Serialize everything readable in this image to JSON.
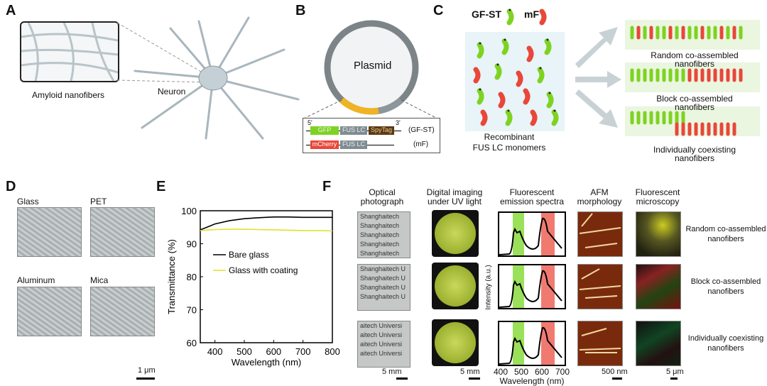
{
  "panels": {
    "A": {
      "label": "A",
      "inset_caption": "Amyloid nanofibers",
      "neuron_label": "Neuron"
    },
    "B": {
      "label": "B",
      "plasmid": "Plasmid",
      "five_prime": "5'",
      "three_prime": "3'",
      "construct1": {
        "parts": [
          "GFP",
          "FUS LC",
          "SpyTag"
        ],
        "name": "(GF-ST)"
      },
      "construct2": {
        "parts": [
          "mCherry",
          "FUS LC"
        ],
        "name": "(mF)"
      }
    },
    "C": {
      "label": "C",
      "legend_gfst": "GF-ST",
      "legend_mf": "mF",
      "monomers_caption_1": "Recombinant",
      "monomers_caption_2": "FUS LC monomers",
      "outcomes": [
        {
          "line1": "Random co-assembled",
          "line2": "nanofibers"
        },
        {
          "line1": "Block co-assembled",
          "line2": "nanofibers"
        },
        {
          "line1": "Individually coexisting",
          "line2": "nanofibers"
        }
      ]
    },
    "D": {
      "label": "D",
      "substrates": [
        "Glass",
        "PET",
        "Aluminum",
        "Mica"
      ],
      "scale_bar": "1 μm"
    },
    "E": {
      "label": "E"
    },
    "F": {
      "label": "F",
      "columns": [
        {
          "line1": "Optical",
          "line2": "photograph"
        },
        {
          "line1": "Digital imaging",
          "line2": "under UV light"
        },
        {
          "line1": "Fluorescent",
          "line2": "emission spectra"
        },
        {
          "line1": "AFM",
          "line2": "morphology"
        },
        {
          "line1": "Fluorescent",
          "line2": "microscopy"
        }
      ],
      "rows": [
        {
          "line1": "Random co-assembled",
          "line2": "nanofibers"
        },
        {
          "line1": "Block co-assembled",
          "line2": "nanofibers"
        },
        {
          "line1": "Individually coexisting",
          "line2": "nanofibers"
        }
      ],
      "optical_text": [
        [
          "Shanghaitech",
          "Shanghaitech",
          "Shanghaitech",
          "Shanghaitech",
          "Shanghaitech"
        ],
        [
          "Shanghaitech U",
          "Shanghaitech U",
          "Shanghaitech U",
          "Shanghaitech U"
        ],
        [
          "aitech Universi",
          "aitech Universi",
          "aitech Universi",
          "aitech Universi"
        ]
      ],
      "scale_optical": "5 mm",
      "scale_uv": "5 mm",
      "scale_afm": "500 nm",
      "scale_fm": "5 μm",
      "spectra_ylabel": "Intensity (a.u.)",
      "spectra_xlabel": "Wavelength (nm)",
      "spectra_ticks": [
        "400",
        "500",
        "600",
        "700"
      ],
      "spectra_green_band": [
        465,
        515
      ],
      "spectra_red_band": [
        590,
        650
      ]
    }
  },
  "colors": {
    "gfp": "#7ed321",
    "mcherry": "#e8473a",
    "fus": "#7f8c93",
    "spytag": "#5a3a16",
    "coating": "#e0e030",
    "green_band": "#9be05a",
    "red_band": "#f07a70"
  },
  "chart_data": {
    "type": "line",
    "title": "",
    "xlabel": "Wavelength (nm)",
    "ylabel": "Transmittance (%)",
    "xlim": [
      350,
      800
    ],
    "ylim": [
      60,
      100
    ],
    "xticks": [
      400,
      500,
      600,
      700,
      800
    ],
    "yticks": [
      60,
      70,
      80,
      90,
      100
    ],
    "legend": "center-left",
    "grid": false,
    "series": [
      {
        "name": "Bare glass",
        "color": "#000000",
        "x": [
          350,
          400,
          450,
          500,
          550,
          600,
          650,
          700,
          750,
          800
        ],
        "y": [
          94.2,
          96.0,
          97.0,
          97.6,
          97.9,
          98.1,
          98.1,
          98.0,
          98.0,
          98.0
        ]
      },
      {
        "name": "Glass with coating",
        "color": "#e0e030",
        "x": [
          350,
          400,
          450,
          500,
          550,
          600,
          650,
          700,
          750,
          800
        ],
        "y": [
          94.0,
          94.3,
          94.4,
          94.4,
          94.3,
          94.2,
          94.1,
          94.0,
          94.0,
          93.9
        ]
      }
    ]
  }
}
